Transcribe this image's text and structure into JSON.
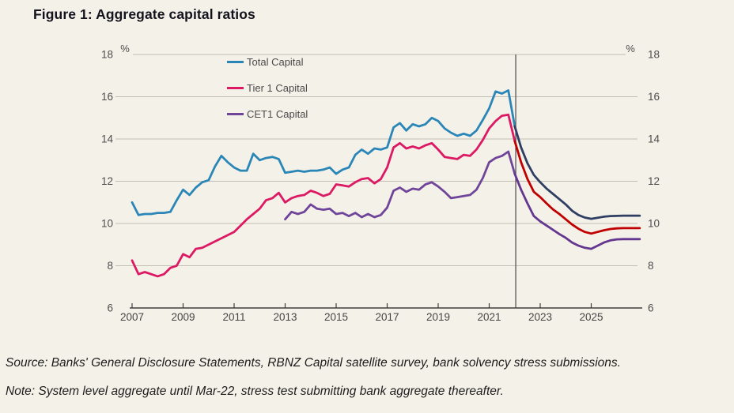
{
  "figure": {
    "title": "Figure 1: Aggregate capital ratios",
    "source": "Source: Banks' General Disclosure Statements, RBNZ Capital satellite survey, bank solvency stress submissions.",
    "note": "Note: System level aggregate until Mar-22, stress test submitting bank aggregate thereafter."
  },
  "chart_data": {
    "type": "line",
    "title": "Figure 1: Aggregate capital ratios",
    "unit": "%",
    "y_axis": {
      "min": 6,
      "max": 18,
      "ticks": [
        18,
        16,
        14,
        12,
        10,
        8,
        6
      ],
      "unit_left": "%",
      "unit_right": "%",
      "sides": "both"
    },
    "x_axis": {
      "ticks": [
        2007,
        2009,
        2011,
        2013,
        2015,
        2017,
        2019,
        2021,
        2023,
        2025
      ],
      "data_start": 2007,
      "data_end": 2026.9
    },
    "divider_year": 2022.04,
    "grid": "horizontal",
    "legend_position": "top-inside",
    "legend": [
      {
        "label": "Total Capital",
        "color": "#2b86b8"
      },
      {
        "label": "Tier 1 Capital",
        "color": "#dc1a63"
      },
      {
        "label": "CET1 Capital",
        "color": "#6f4599"
      }
    ],
    "series": [
      {
        "id": "cet1-capital",
        "name": "CET1 Capital",
        "color": "#6f4599",
        "phase": "system aggregate until Mar-22",
        "points": [
          [
            2013.0,
            10.2
          ],
          [
            2013.25,
            10.55
          ],
          [
            2013.5,
            10.45
          ],
          [
            2013.75,
            10.55
          ],
          [
            2014.0,
            10.9
          ],
          [
            2014.25,
            10.7
          ],
          [
            2014.5,
            10.65
          ],
          [
            2014.75,
            10.7
          ],
          [
            2015.0,
            10.45
          ],
          [
            2015.25,
            10.5
          ],
          [
            2015.5,
            10.35
          ],
          [
            2015.75,
            10.5
          ],
          [
            2016.0,
            10.3
          ],
          [
            2016.25,
            10.45
          ],
          [
            2016.5,
            10.3
          ],
          [
            2016.75,
            10.4
          ],
          [
            2017.0,
            10.75
          ],
          [
            2017.25,
            11.55
          ],
          [
            2017.5,
            11.7
          ],
          [
            2017.75,
            11.5
          ],
          [
            2018.0,
            11.65
          ],
          [
            2018.25,
            11.6
          ],
          [
            2018.5,
            11.85
          ],
          [
            2018.75,
            11.95
          ],
          [
            2019.0,
            11.75
          ],
          [
            2019.25,
            11.5
          ],
          [
            2019.5,
            11.2
          ],
          [
            2019.75,
            11.25
          ],
          [
            2020.0,
            11.3
          ],
          [
            2020.25,
            11.35
          ],
          [
            2020.5,
            11.6
          ],
          [
            2020.75,
            12.15
          ],
          [
            2021.0,
            12.9
          ],
          [
            2021.25,
            13.1
          ],
          [
            2021.5,
            13.2
          ],
          [
            2021.75,
            13.4
          ],
          [
            2022.0,
            12.35
          ]
        ]
      },
      {
        "id": "tier-1-capital",
        "name": "Tier 1 Capital",
        "color": "#dc1a63",
        "phase": "system aggregate until Mar-22",
        "points": [
          [
            2007.0,
            8.25
          ],
          [
            2007.25,
            7.6
          ],
          [
            2007.5,
            7.7
          ],
          [
            2007.75,
            7.6
          ],
          [
            2008.0,
            7.5
          ],
          [
            2008.25,
            7.6
          ],
          [
            2008.5,
            7.9
          ],
          [
            2008.75,
            8.0
          ],
          [
            2009.0,
            8.55
          ],
          [
            2009.25,
            8.4
          ],
          [
            2009.5,
            8.8
          ],
          [
            2009.75,
            8.85
          ],
          [
            2010.0,
            9.0
          ],
          [
            2010.25,
            9.15
          ],
          [
            2010.5,
            9.3
          ],
          [
            2010.75,
            9.45
          ],
          [
            2011.0,
            9.6
          ],
          [
            2011.25,
            9.9
          ],
          [
            2011.5,
            10.2
          ],
          [
            2011.75,
            10.45
          ],
          [
            2012.0,
            10.7
          ],
          [
            2012.25,
            11.1
          ],
          [
            2012.5,
            11.2
          ],
          [
            2012.75,
            11.45
          ],
          [
            2013.0,
            11.0
          ],
          [
            2013.25,
            11.2
          ],
          [
            2013.5,
            11.3
          ],
          [
            2013.75,
            11.35
          ],
          [
            2014.0,
            11.55
          ],
          [
            2014.25,
            11.45
          ],
          [
            2014.5,
            11.3
          ],
          [
            2014.75,
            11.4
          ],
          [
            2015.0,
            11.85
          ],
          [
            2015.25,
            11.8
          ],
          [
            2015.5,
            11.75
          ],
          [
            2015.75,
            11.95
          ],
          [
            2016.0,
            12.1
          ],
          [
            2016.25,
            12.15
          ],
          [
            2016.5,
            11.9
          ],
          [
            2016.75,
            12.1
          ],
          [
            2017.0,
            12.65
          ],
          [
            2017.25,
            13.6
          ],
          [
            2017.5,
            13.8
          ],
          [
            2017.75,
            13.55
          ],
          [
            2018.0,
            13.65
          ],
          [
            2018.25,
            13.55
          ],
          [
            2018.5,
            13.7
          ],
          [
            2018.75,
            13.8
          ],
          [
            2019.0,
            13.5
          ],
          [
            2019.25,
            13.15
          ],
          [
            2019.5,
            13.1
          ],
          [
            2019.75,
            13.05
          ],
          [
            2020.0,
            13.25
          ],
          [
            2020.25,
            13.2
          ],
          [
            2020.5,
            13.5
          ],
          [
            2020.75,
            13.95
          ],
          [
            2021.0,
            14.5
          ],
          [
            2021.25,
            14.85
          ],
          [
            2021.5,
            15.1
          ],
          [
            2021.75,
            15.15
          ],
          [
            2022.0,
            13.9
          ]
        ]
      },
      {
        "id": "total-capital",
        "name": "Total Capital",
        "color": "#2b86b8",
        "phase": "system aggregate until Mar-22",
        "points": [
          [
            2007.0,
            11.0
          ],
          [
            2007.25,
            10.4
          ],
          [
            2007.5,
            10.45
          ],
          [
            2007.75,
            10.45
          ],
          [
            2008.0,
            10.5
          ],
          [
            2008.25,
            10.5
          ],
          [
            2008.5,
            10.55
          ],
          [
            2008.75,
            11.1
          ],
          [
            2009.0,
            11.6
          ],
          [
            2009.25,
            11.35
          ],
          [
            2009.5,
            11.7
          ],
          [
            2009.75,
            11.95
          ],
          [
            2010.0,
            12.05
          ],
          [
            2010.25,
            12.7
          ],
          [
            2010.5,
            13.2
          ],
          [
            2010.75,
            12.9
          ],
          [
            2011.0,
            12.65
          ],
          [
            2011.25,
            12.5
          ],
          [
            2011.5,
            12.5
          ],
          [
            2011.75,
            13.3
          ],
          [
            2012.0,
            13.0
          ],
          [
            2012.25,
            13.1
          ],
          [
            2012.5,
            13.15
          ],
          [
            2012.75,
            13.05
          ],
          [
            2013.0,
            12.4
          ],
          [
            2013.25,
            12.45
          ],
          [
            2013.5,
            12.5
          ],
          [
            2013.75,
            12.45
          ],
          [
            2014.0,
            12.5
          ],
          [
            2014.25,
            12.5
          ],
          [
            2014.5,
            12.55
          ],
          [
            2014.75,
            12.65
          ],
          [
            2015.0,
            12.35
          ],
          [
            2015.25,
            12.55
          ],
          [
            2015.5,
            12.65
          ],
          [
            2015.75,
            13.25
          ],
          [
            2016.0,
            13.5
          ],
          [
            2016.25,
            13.3
          ],
          [
            2016.5,
            13.55
          ],
          [
            2016.75,
            13.5
          ],
          [
            2017.0,
            13.6
          ],
          [
            2017.25,
            14.55
          ],
          [
            2017.5,
            14.75
          ],
          [
            2017.75,
            14.4
          ],
          [
            2018.0,
            14.7
          ],
          [
            2018.25,
            14.6
          ],
          [
            2018.5,
            14.7
          ],
          [
            2018.75,
            15.0
          ],
          [
            2019.0,
            14.85
          ],
          [
            2019.25,
            14.5
          ],
          [
            2019.5,
            14.3
          ],
          [
            2019.75,
            14.15
          ],
          [
            2020.0,
            14.25
          ],
          [
            2020.25,
            14.15
          ],
          [
            2020.5,
            14.4
          ],
          [
            2020.75,
            14.9
          ],
          [
            2021.0,
            15.45
          ],
          [
            2021.25,
            16.25
          ],
          [
            2021.5,
            16.15
          ],
          [
            2021.75,
            16.3
          ],
          [
            2022.0,
            14.6
          ]
        ]
      },
      {
        "id": "cet1-capital-projection",
        "name": "CET1 Capital",
        "color": "#63368f",
        "phase": "stress test bank aggregate from Mar-22",
        "points": [
          [
            2022.0,
            12.35
          ],
          [
            2022.25,
            11.6
          ],
          [
            2022.5,
            10.95
          ],
          [
            2022.75,
            10.35
          ],
          [
            2023.0,
            10.1
          ],
          [
            2023.25,
            9.9
          ],
          [
            2023.5,
            9.7
          ],
          [
            2023.75,
            9.5
          ],
          [
            2024.0,
            9.32
          ],
          [
            2024.25,
            9.1
          ],
          [
            2024.5,
            8.95
          ],
          [
            2024.75,
            8.85
          ],
          [
            2025.0,
            8.8
          ],
          [
            2025.25,
            8.95
          ],
          [
            2025.5,
            9.1
          ],
          [
            2025.75,
            9.2
          ],
          [
            2026.0,
            9.25
          ],
          [
            2026.25,
            9.26
          ],
          [
            2026.5,
            9.26
          ],
          [
            2026.9,
            9.26
          ]
        ]
      },
      {
        "id": "tier-1-capital-projection",
        "name": "Tier 1 Capital",
        "color": "#c00000",
        "phase": "stress test bank aggregate from Mar-22",
        "points": [
          [
            2022.0,
            13.9
          ],
          [
            2022.25,
            12.9
          ],
          [
            2022.5,
            12.1
          ],
          [
            2022.75,
            11.5
          ],
          [
            2023.0,
            11.25
          ],
          [
            2023.25,
            10.95
          ],
          [
            2023.5,
            10.67
          ],
          [
            2023.75,
            10.45
          ],
          [
            2024.0,
            10.2
          ],
          [
            2024.25,
            9.95
          ],
          [
            2024.5,
            9.75
          ],
          [
            2024.75,
            9.6
          ],
          [
            2025.0,
            9.52
          ],
          [
            2025.25,
            9.6
          ],
          [
            2025.5,
            9.68
          ],
          [
            2025.75,
            9.74
          ],
          [
            2026.0,
            9.77
          ],
          [
            2026.25,
            9.78
          ],
          [
            2026.5,
            9.78
          ],
          [
            2026.9,
            9.78
          ]
        ]
      },
      {
        "id": "total-capital-projection",
        "name": "Total Capital",
        "color": "#2e3f63",
        "phase": "stress test bank aggregate from Mar-22",
        "points": [
          [
            2022.0,
            14.6
          ],
          [
            2022.25,
            13.6
          ],
          [
            2022.5,
            12.85
          ],
          [
            2022.75,
            12.3
          ],
          [
            2023.0,
            11.95
          ],
          [
            2023.25,
            11.65
          ],
          [
            2023.5,
            11.4
          ],
          [
            2023.75,
            11.15
          ],
          [
            2024.0,
            10.9
          ],
          [
            2024.25,
            10.6
          ],
          [
            2024.5,
            10.4
          ],
          [
            2024.75,
            10.28
          ],
          [
            2025.0,
            10.22
          ],
          [
            2025.25,
            10.27
          ],
          [
            2025.5,
            10.32
          ],
          [
            2025.75,
            10.35
          ],
          [
            2026.0,
            10.36
          ],
          [
            2026.25,
            10.37
          ],
          [
            2026.5,
            10.37
          ],
          [
            2026.9,
            10.37
          ]
        ]
      }
    ],
    "colors": {
      "background": "#f4f1e9",
      "gridline": "#c3beb3",
      "axis": "#3f3f3f",
      "divider": "#4a4a4a",
      "axis_label": "#4d4d4d"
    }
  }
}
